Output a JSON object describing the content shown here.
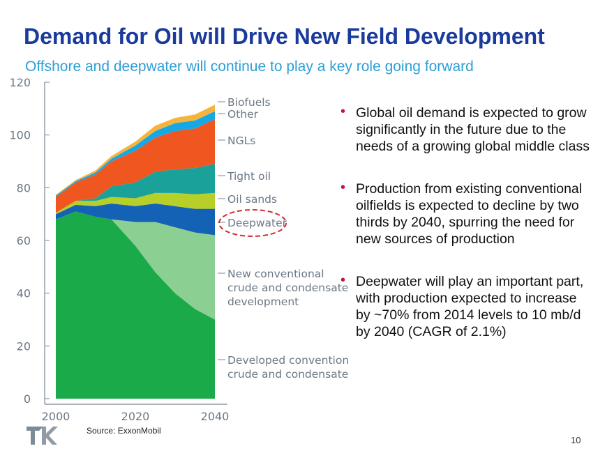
{
  "slide": {
    "title": "Demand for Oil will Drive New Field Development",
    "subtitle": "Offshore and deepwater will continue to play a key role going forward",
    "bullets": [
      "Global oil demand is expected to grow significantly in the future due to the needs of a growing global middle class",
      "Production from existing conventional oilfields is expected to decline by two thirds by 2040, spurring the need for new sources of production",
      "Deepwater will play an important part, with production expected to increase by ~70% from 2014 levels to 10 mb/d by 2040 (CAGR of 2.1%)"
    ],
    "source": "Source: ExxonMobil",
    "page_number": "10",
    "colors": {
      "title": "#1a3a9c",
      "subtitle": "#2e9fd6",
      "bullet_marker": "#c0163a",
      "highlight_ellipse": "#d42a2a"
    }
  },
  "chart_data": {
    "type": "area",
    "stacked": true,
    "x": [
      2000,
      2005,
      2010,
      2014,
      2020,
      2025,
      2030,
      2035,
      2040
    ],
    "x_ticks": [
      "2000",
      "2020",
      "2040"
    ],
    "y_ticks": [
      "0",
      "20",
      "40",
      "60",
      "80",
      "100",
      "120"
    ],
    "ylim": [
      0,
      120
    ],
    "xlim": [
      1999,
      2041
    ],
    "series": [
      {
        "name": "Developed conventional crude and condensate",
        "color": "#1aaa4a",
        "values": [
          68,
          71,
          69,
          68,
          58,
          48,
          40,
          34,
          30
        ]
      },
      {
        "name": "New conventional crude and condensate development",
        "color": "#8ccf93",
        "values": [
          0,
          0,
          0,
          0,
          9,
          19,
          25,
          29,
          32
        ]
      },
      {
        "name": "Deepwater",
        "color": "#1462b5",
        "values": [
          2,
          2.5,
          4,
          6,
          6,
          7,
          8,
          9,
          10
        ]
      },
      {
        "name": "Oil sands",
        "color": "#b8cf2a",
        "values": [
          0.5,
          1.5,
          2,
          2.5,
          3,
          4,
          5,
          5.5,
          6
        ]
      },
      {
        "name": "Tight oil",
        "color": "#1aa29a",
        "values": [
          0,
          0,
          1,
          4,
          6,
          8,
          9,
          10,
          11
        ]
      },
      {
        "name": "NGLs",
        "color": "#f0561f",
        "values": [
          6,
          7,
          9,
          9.5,
          12,
          13,
          14.5,
          15,
          17
        ]
      },
      {
        "name": "Other",
        "color": "#14a8e6",
        "values": [
          0.5,
          0.5,
          0.8,
          1,
          2,
          2.5,
          3,
          3,
          3
        ]
      },
      {
        "name": "Biofuels",
        "color": "#f5b43c",
        "values": [
          0.3,
          0.4,
          0.8,
          1,
          1.5,
          2,
          2,
          2.3,
          2.5
        ]
      }
    ],
    "legend_labels": [
      "Biofuels",
      "Other",
      "NGLs",
      "Tight oil",
      "Oil sands",
      "Deepwater",
      "New conventional\ncrude and condensate\ndevelopment",
      "Developed conventional\ncrude and condensate"
    ],
    "highlighted_series": "Deepwater"
  }
}
